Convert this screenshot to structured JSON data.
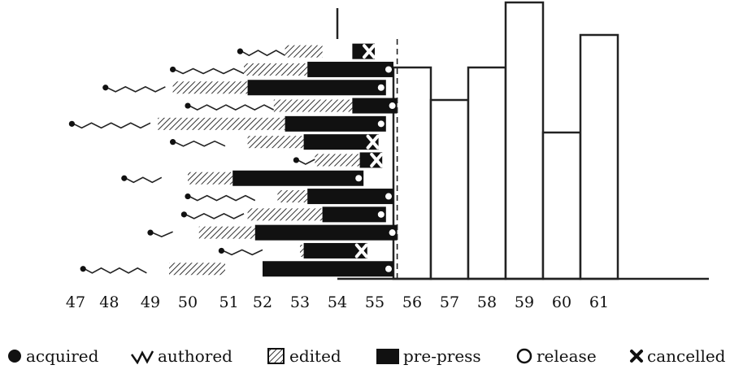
{
  "chart_data": {
    "type": "timeline-gantt-with-step-histogram",
    "x_ticks": [
      "47",
      "48",
      "49",
      "50",
      "51",
      "52",
      "53",
      "54",
      "55",
      "56",
      "57",
      "58",
      "59",
      "60",
      "61"
    ],
    "stage_order": [
      "acquired",
      "authored",
      "edited",
      "pre-press",
      "release",
      "cancelled"
    ],
    "books": [
      {
        "acquired": 51.4,
        "authored_end": 52.6,
        "edited": [
          52.6,
          53.6
        ],
        "prepress": [
          54.4,
          55.0
        ],
        "end": 55.0,
        "outcome": "cancelled"
      },
      {
        "acquired": 49.6,
        "authored_end": 51.5,
        "edited": [
          51.5,
          53.2
        ],
        "prepress": [
          53.2,
          55.5
        ],
        "end": 55.5,
        "outcome": "release"
      },
      {
        "acquired": 47.8,
        "authored_end": 49.4,
        "edited": [
          49.6,
          51.6
        ],
        "prepress": [
          51.6,
          55.3
        ],
        "end": 55.3,
        "outcome": "release"
      },
      {
        "acquired": 50.0,
        "authored_end": 52.3,
        "edited": [
          52.3,
          54.4
        ],
        "prepress": [
          54.4,
          55.6
        ],
        "end": 55.6,
        "outcome": "release"
      },
      {
        "acquired": 46.9,
        "authored_end": 49.0,
        "edited": [
          49.2,
          52.6
        ],
        "prepress": [
          52.6,
          55.3
        ],
        "end": 55.3,
        "outcome": "release"
      },
      {
        "acquired": 49.6,
        "authored_end": 51.0,
        "edited": [
          51.6,
          53.1
        ],
        "prepress": [
          53.1,
          55.1
        ],
        "end": 55.1,
        "outcome": "cancelled"
      },
      {
        "acquired": 52.9,
        "authored_end": 53.4,
        "edited": [
          53.4,
          54.6
        ],
        "prepress": [
          54.6,
          55.2
        ],
        "end": 55.2,
        "outcome": "cancelled"
      },
      {
        "acquired": 48.3,
        "authored_end": 49.3,
        "edited": [
          50.0,
          51.2
        ],
        "prepress": [
          51.2,
          54.7
        ],
        "end": 54.7,
        "outcome": "release"
      },
      {
        "acquired": 50.0,
        "authored_end": 51.8,
        "edited": [
          52.4,
          53.2
        ],
        "prepress": [
          53.2,
          55.5
        ],
        "end": 55.5,
        "outcome": "release"
      },
      {
        "acquired": 49.9,
        "authored_end": 51.5,
        "edited": [
          51.6,
          53.6
        ],
        "prepress": [
          53.6,
          55.3
        ],
        "end": 55.3,
        "outcome": "release"
      },
      {
        "acquired": 49.0,
        "authored_end": 49.6,
        "edited": [
          50.3,
          51.8
        ],
        "prepress": [
          51.8,
          55.6
        ],
        "end": 55.6,
        "outcome": "release"
      },
      {
        "acquired": 50.9,
        "authored_end": 52.0,
        "edited": [
          53.0,
          53.1
        ],
        "prepress": [
          53.1,
          54.8
        ],
        "end": 54.8,
        "outcome": "cancelled"
      },
      {
        "acquired": 47.2,
        "authored_end": 48.9,
        "edited": [
          49.5,
          51.0
        ],
        "prepress": [
          52.0,
          55.5
        ],
        "end": 55.5,
        "outcome": "release"
      }
    ],
    "histogram": {
      "bins": [
        55.5,
        56.5,
        57.5,
        58.5,
        59.5,
        60.5,
        61.5
      ],
      "counts": [
        13,
        11,
        13,
        17,
        9,
        15
      ]
    },
    "grid": false
  },
  "legend": [
    {
      "key": "acquired",
      "label": "acquired"
    },
    {
      "key": "authored",
      "label": "authored"
    },
    {
      "key": "edited",
      "label": "edited"
    },
    {
      "key": "prepress",
      "label": "pre-press"
    },
    {
      "key": "release",
      "label": "release"
    },
    {
      "key": "cancelled",
      "label": "cancelled"
    }
  ]
}
